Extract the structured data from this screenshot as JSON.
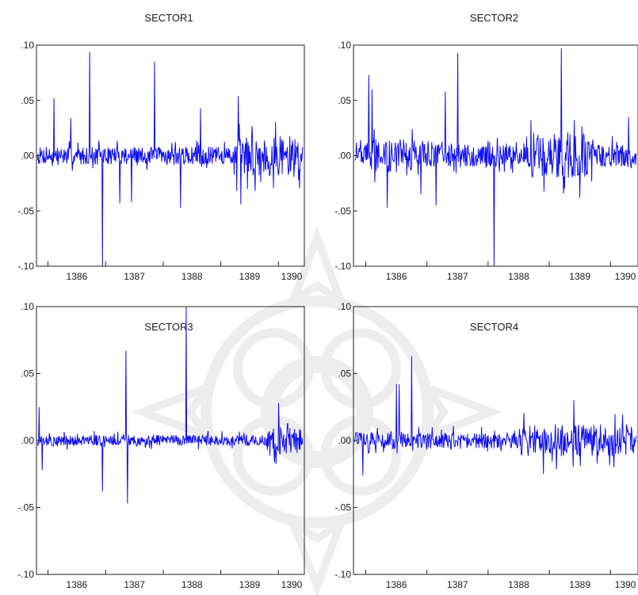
{
  "chart_data": [
    {
      "type": "line",
      "title": "SECTOR1",
      "xlabel": "",
      "ylabel": "",
      "ylim": [
        -0.1,
        0.1
      ],
      "xlim": [
        1385.8,
        1390.45
      ],
      "y_ticks": [
        ".10",
        ".05",
        ".00",
        "-.05",
        "-.10"
      ],
      "y_tick_values": [
        0.1,
        0.05,
        0.0,
        -0.05,
        -0.1
      ],
      "x_ticks": [
        "1386",
        "1387",
        "1388",
        "1389",
        "1390"
      ],
      "line_color": "#1010ee",
      "grid": false,
      "base_noise": 0.008,
      "spikes": [
        {
          "x": 1386.1,
          "y": 0.052
        },
        {
          "x": 1386.4,
          "y": 0.034
        },
        {
          "x": 1386.72,
          "y": 0.094
        },
        {
          "x": 1386.95,
          "y": -0.1
        },
        {
          "x": 1387.25,
          "y": -0.043
        },
        {
          "x": 1387.45,
          "y": -0.042
        },
        {
          "x": 1387.85,
          "y": 0.085
        },
        {
          "x": 1388.3,
          "y": -0.047
        },
        {
          "x": 1388.65,
          "y": 0.043
        },
        {
          "x": 1389.3,
          "y": 0.054
        },
        {
          "x": 1389.35,
          "y": -0.044
        },
        {
          "x": 1389.6,
          "y": -0.032
        }
      ],
      "volatile_ranges": [
        [
          1389.2,
          1390.4,
          0.018
        ]
      ]
    },
    {
      "type": "line",
      "title": "SECTOR2",
      "xlabel": "",
      "ylabel": "",
      "ylim": [
        -0.1,
        0.1
      ],
      "xlim": [
        1385.8,
        1390.45
      ],
      "y_ticks": [
        ".10",
        ".05",
        ".00",
        "-.05",
        "-.10"
      ],
      "y_tick_values": [
        0.1,
        0.05,
        0.0,
        -0.05,
        -0.1
      ],
      "x_ticks": [
        "1386",
        "1387",
        "1388",
        "1389",
        "1390"
      ],
      "line_color": "#1010ee",
      "grid": false,
      "base_noise": 0.01,
      "spikes": [
        {
          "x": 1386.05,
          "y": 0.073
        },
        {
          "x": 1386.1,
          "y": 0.06
        },
        {
          "x": 1386.35,
          "y": -0.047
        },
        {
          "x": 1386.9,
          "y": -0.035
        },
        {
          "x": 1387.15,
          "y": -0.045
        },
        {
          "x": 1387.5,
          "y": 0.093
        },
        {
          "x": 1387.3,
          "y": 0.058
        },
        {
          "x": 1388.1,
          "y": -0.1
        },
        {
          "x": 1389.2,
          "y": 0.097
        },
        {
          "x": 1389.5,
          "y": -0.038
        },
        {
          "x": 1390.3,
          "y": 0.035
        }
      ],
      "volatile_ranges": [
        [
          1386.0,
          1386.8,
          0.015
        ],
        [
          1388.7,
          1389.7,
          0.02
        ]
      ]
    },
    {
      "type": "line",
      "title": "SECTOR3",
      "xlabel": "",
      "ylabel": "",
      "ylim": [
        -0.1,
        0.1
      ],
      "xlim": [
        1385.8,
        1390.45
      ],
      "y_ticks": [
        ".10",
        ".05",
        ".00",
        "-.05",
        "-.10"
      ],
      "y_tick_values": [
        0.1,
        0.05,
        0.0,
        -0.05,
        -0.1
      ],
      "x_ticks": [
        "1386",
        "1387",
        "1388",
        "1389",
        "1390"
      ],
      "line_color": "#1010ee",
      "grid": false,
      "base_noise": 0.004,
      "spikes": [
        {
          "x": 1385.85,
          "y": 0.025
        },
        {
          "x": 1385.9,
          "y": -0.022
        },
        {
          "x": 1386.95,
          "y": -0.038
        },
        {
          "x": 1387.35,
          "y": 0.067
        },
        {
          "x": 1387.38,
          "y": -0.047
        },
        {
          "x": 1388.4,
          "y": 0.1
        },
        {
          "x": 1390.0,
          "y": 0.028
        }
      ],
      "volatile_ranges": [
        [
          1389.8,
          1390.4,
          0.01
        ]
      ]
    },
    {
      "type": "line",
      "title": "SECTOR4",
      "xlabel": "",
      "ylabel": "",
      "ylim": [
        -0.1,
        0.1
      ],
      "xlim": [
        1385.8,
        1390.45
      ],
      "y_ticks": [
        ".10",
        ".05",
        ".00",
        "-.05",
        "-.10"
      ],
      "y_tick_values": [
        0.1,
        0.05,
        0.0,
        -0.05,
        -0.1
      ],
      "x_ticks": [
        "1386",
        "1387",
        "1388",
        "1389",
        "1390"
      ],
      "line_color": "#1010ee",
      "grid": false,
      "base_noise": 0.006,
      "spikes": [
        {
          "x": 1385.95,
          "y": -0.026
        },
        {
          "x": 1386.5,
          "y": 0.042
        },
        {
          "x": 1386.55,
          "y": 0.042
        },
        {
          "x": 1386.75,
          "y": 0.063
        },
        {
          "x": 1389.4,
          "y": 0.03
        },
        {
          "x": 1388.9,
          "y": -0.025
        }
      ],
      "volatile_ranges": [
        [
          1388.5,
          1390.4,
          0.012
        ]
      ]
    }
  ]
}
